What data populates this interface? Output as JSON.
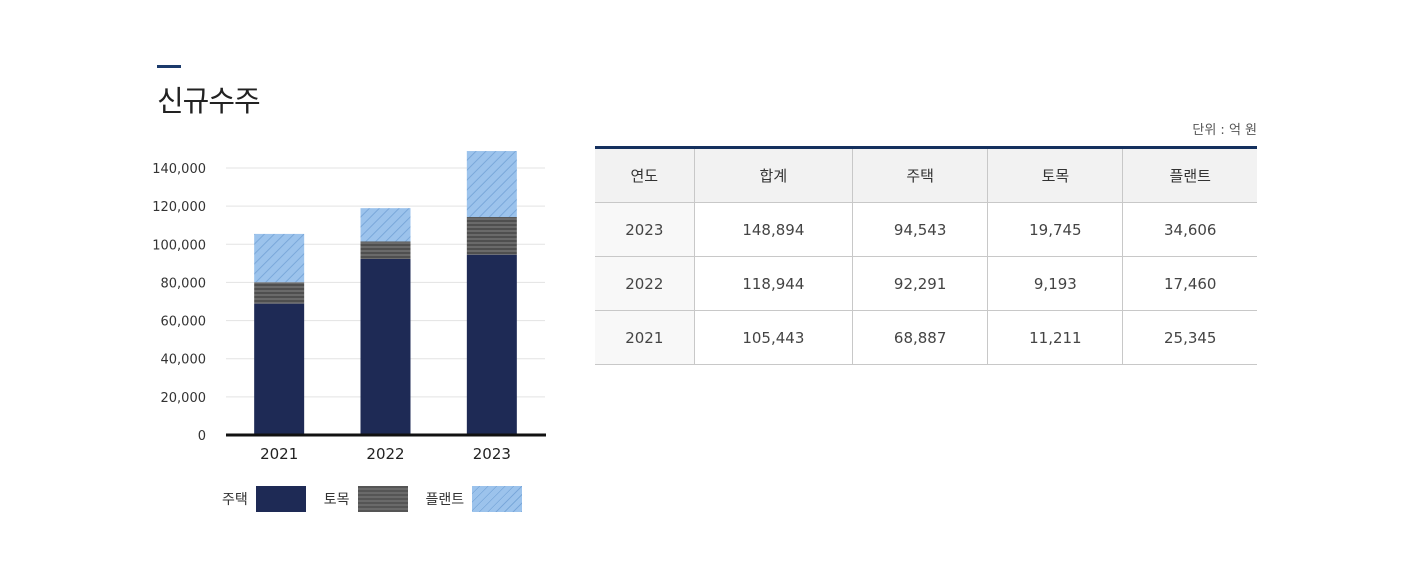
{
  "page": {
    "title": "신규수주",
    "unit_label": "단위 : 억 원"
  },
  "chart_data": {
    "type": "bar",
    "stacked": true,
    "categories": [
      "2021",
      "2022",
      "2023"
    ],
    "series": [
      {
        "name": "주택",
        "values": [
          68887,
          92291,
          94543
        ],
        "color": "#1e2a55"
      },
      {
        "name": "토목",
        "values": [
          11211,
          9193,
          19745
        ],
        "color": "#555555"
      },
      {
        "name": "플랜트",
        "values": [
          25345,
          17460,
          34606
        ],
        "color": "#9cc3ec"
      }
    ],
    "ylim": [
      0,
      140000
    ],
    "yticks": [
      "0",
      "20,000",
      "40,000",
      "60,000",
      "80,000",
      "100,000",
      "120,000",
      "140,000"
    ],
    "grid": true,
    "legend_position": "bottom"
  },
  "table": {
    "headers": [
      "연도",
      "합계",
      "주택",
      "토목",
      "플랜트"
    ],
    "rows": [
      [
        "2023",
        "148,894",
        "94,543",
        "19,745",
        "34,606"
      ],
      [
        "2022",
        "118,944",
        "92,291",
        "9,193",
        "17,460"
      ],
      [
        "2021",
        "105,443",
        "68,887",
        "11,211",
        "25,345"
      ]
    ]
  }
}
